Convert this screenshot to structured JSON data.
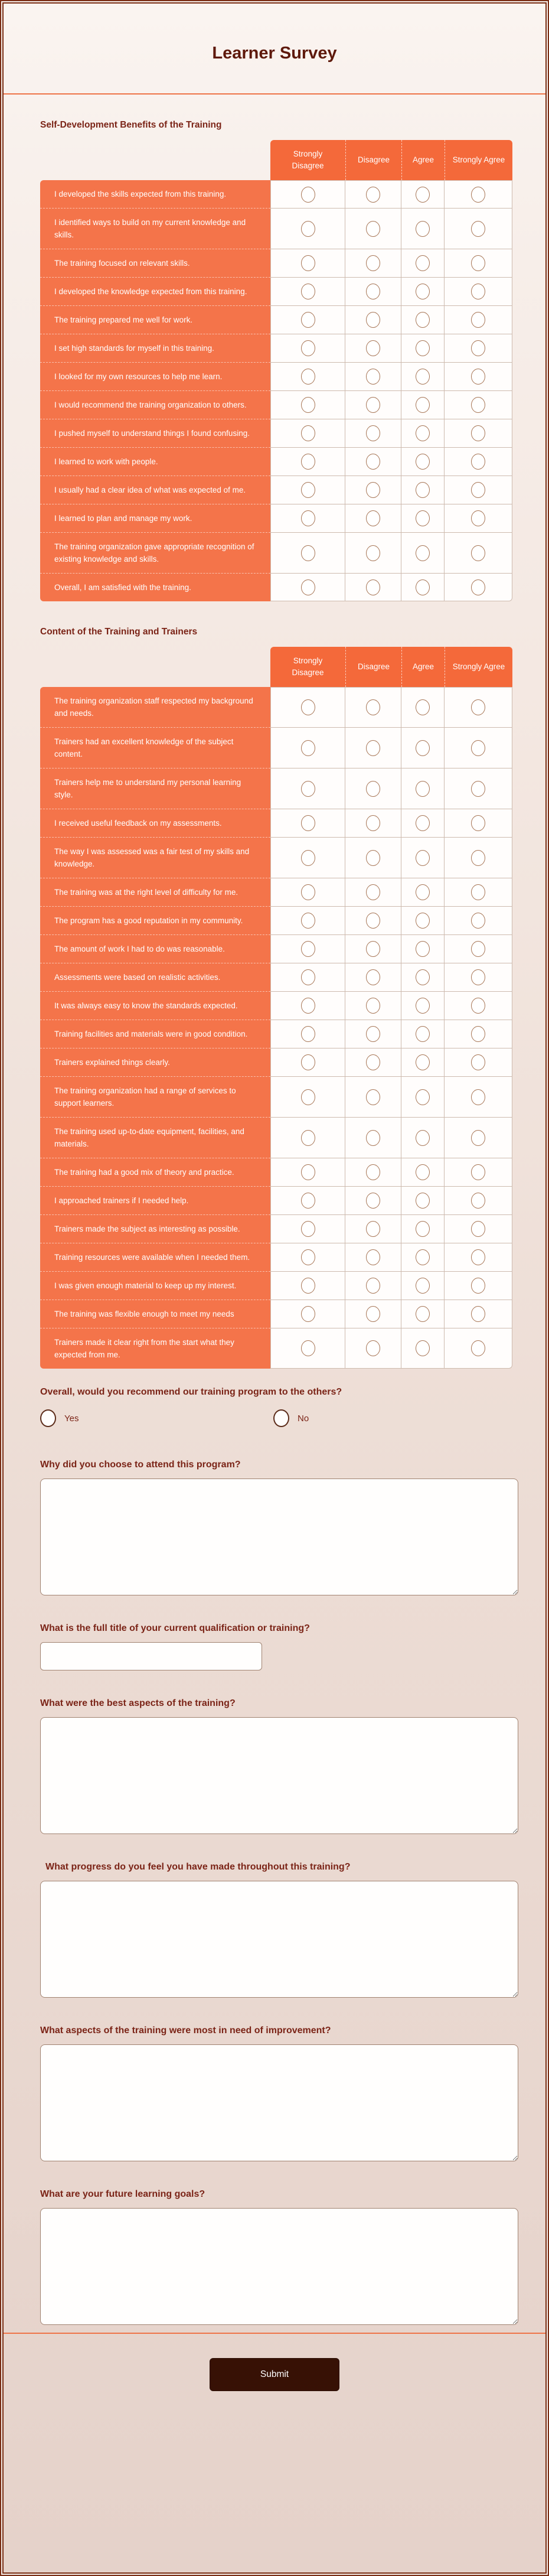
{
  "form": {
    "title": "Learner Survey",
    "submit_label": "Submit"
  },
  "scale_options": [
    "Strongly Disagree",
    "Disagree",
    "Agree",
    "Strongly Agree"
  ],
  "matrix_sections": [
    {
      "heading": "Self-Development Benefits of the Training",
      "rows": [
        "I developed the skills expected from this training.",
        "I identified ways to build on my current knowledge and skills.",
        "The training focused on relevant skills.",
        "I developed the knowledge expected from this training.",
        "The training prepared me well for work.",
        "I set high standards for myself in this training.",
        "I looked for my own resources to help me learn.",
        "I would recommend the training organization to others.",
        "I pushed myself to understand things I found confusing.",
        "I learned to work with people.",
        "I usually had a clear idea of what was expected of me.",
        "I learned to plan and manage my work.",
        "The training organization gave appropriate recognition of existing knowledge and skills.",
        "Overall, I am satisfied with the training."
      ]
    },
    {
      "heading": "Content of the Training and Trainers",
      "rows": [
        "The training organization staff respected my background and needs.",
        "Trainers had an excellent knowledge of the subject content.",
        "Trainers help me to understand my personal learning style.",
        "I received useful feedback on my assessments.",
        "The way I was assessed was a fair test of my skills and knowledge.",
        "The training was at the right level of difficulty for me.",
        "The program has a good reputation in my community.",
        "The amount of work I had to do was reasonable.",
        "Assessments were based on realistic activities.",
        "It was always easy to know the standards expected.",
        "Training facilities and materials were in good condition.",
        "Trainers explained things clearly.",
        "The training organization had a range of services to support learners.",
        "The training used up-to-date equipment, facilities, and materials.",
        "The training had a good mix of theory and practice.",
        "I approached trainers if I needed help.",
        "Trainers made the subject as interesting as possible.",
        "Training resources were available when I needed them.",
        "I was given enough material to keep up my interest.",
        "The training was flexible enough to meet my needs",
        "Trainers made it clear right from the start what they expected from me."
      ]
    }
  ],
  "recommend": {
    "label": "Overall, would you recommend our training program to the others?",
    "options": [
      "Yes",
      "No"
    ]
  },
  "open_questions": [
    {
      "label": "Why did you choose to attend this program?",
      "type": "textarea"
    },
    {
      "label": "What is the full title of your current qualification or training?",
      "type": "text"
    },
    {
      "label": "What were the best aspects of the training?",
      "type": "textarea"
    },
    {
      "label": "What progress do you feel you have made throughout this training?",
      "type": "textarea",
      "indented": true
    },
    {
      "label": "What aspects of the training were most in need of improvement?",
      "type": "textarea"
    },
    {
      "label": "What are your future learning goals?",
      "type": "textarea"
    }
  ],
  "colors": {
    "accent_orange": "#f4693a",
    "row_orange": "#f4744a",
    "title_maroon": "#5e190b",
    "heading_maroon": "#7b2417",
    "divider_orange": "#ee7448",
    "submit_bg": "#371105",
    "radio_border": "#a67454",
    "page_bg_top": "#faf4f0",
    "page_bg_bottom": "#e5d2ca"
  }
}
